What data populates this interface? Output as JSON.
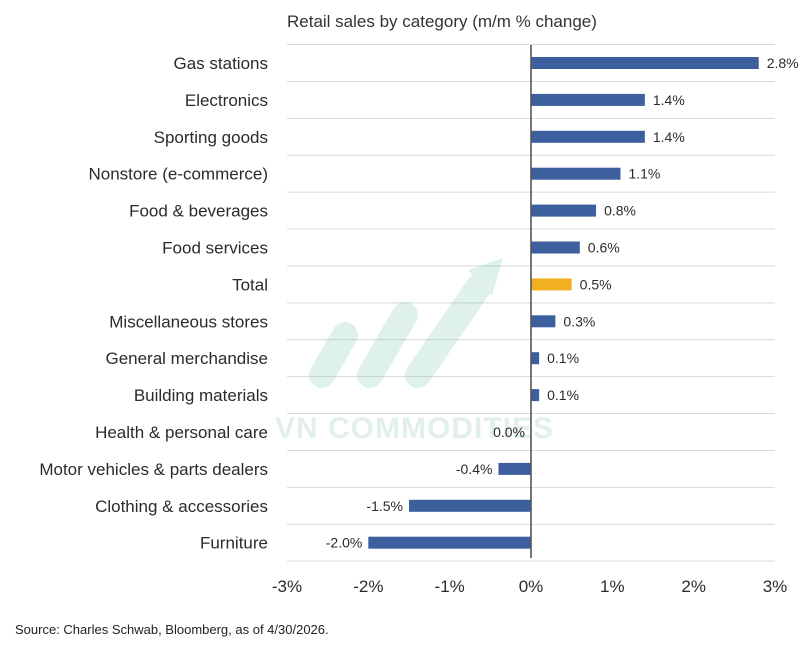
{
  "chart_data": {
    "type": "bar",
    "orientation": "horizontal",
    "title": "Retail sales by category (m/m % change)",
    "categories": [
      "Gas stations",
      "Electronics",
      "Sporting goods",
      "Nonstore (e-commerce)",
      "Food & beverages",
      "Food services",
      "Total",
      "Miscellaneous stores",
      "General merchandise",
      "Building materials",
      "Health & personal care",
      "Motor vehicles & parts dealers",
      "Clothing & accessories",
      "Furniture"
    ],
    "values": [
      2.8,
      1.4,
      1.4,
      1.1,
      0.8,
      0.6,
      0.5,
      0.3,
      0.1,
      0.1,
      0.0,
      -0.4,
      -1.5,
      -2.0
    ],
    "value_labels": [
      "2.8%",
      "1.4%",
      "1.4%",
      "1.1%",
      "0.8%",
      "0.6%",
      "0.5%",
      "0.3%",
      "0.1%",
      "0.1%",
      "0.0%",
      "-0.4%",
      "-1.5%",
      "-2.0%"
    ],
    "highlight_category": "Total",
    "xlim": [
      -3,
      3
    ],
    "x_ticks": [
      -3,
      -2,
      -1,
      0,
      1,
      2,
      3
    ],
    "x_tick_labels": [
      "-3%",
      "-2%",
      "-1%",
      "0%",
      "1%",
      "2%",
      "3%"
    ],
    "xlabel": "",
    "ylabel": "",
    "grid": true,
    "legend": "none"
  },
  "colors": {
    "bar": "#3d5f9e",
    "highlight": "#f0b021"
  },
  "source_note": "Source: Charles Schwab, Bloomberg, as of 4/30/2026.",
  "watermark": {
    "text": "VN COMMODITIES",
    "icon": "rising-arrow-logo"
  }
}
